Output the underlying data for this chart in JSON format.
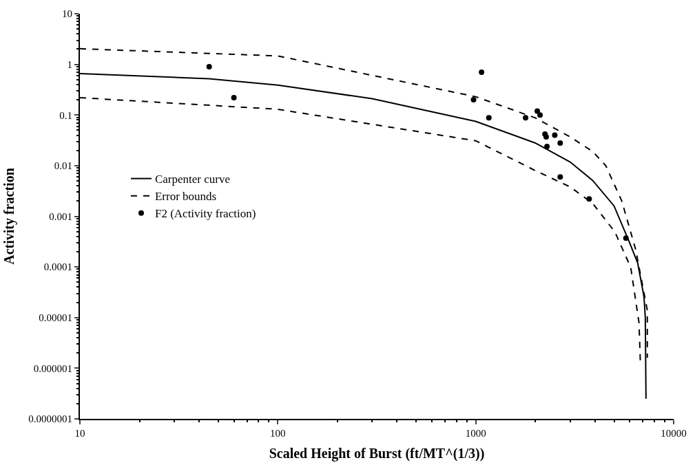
{
  "chart_data": {
    "type": "line",
    "xlabel": "Scaled Height of Burst (ft/MT^(1/3))",
    "ylabel": "Activity fraction",
    "log": "xy",
    "legend": "left",
    "xlim": [
      10,
      10000
    ],
    "xticks": [
      10,
      100,
      1000,
      10000
    ],
    "ylim": [
      1e-07,
      10
    ],
    "yticks": [
      {
        "value": 1e-07,
        "label": "0.0000001"
      },
      {
        "value": 1e-06,
        "label": "0.000001"
      },
      {
        "value": 1e-05,
        "label": "0.00001"
      },
      0.0001,
      0.001,
      0.01,
      0.1,
      1,
      10
    ],
    "series": [
      {
        "name": "Carpenter curve",
        "color": "#000000",
        "line_style": "solid",
        "marker": "none",
        "x": [
          10,
          45,
          100,
          300,
          1000,
          2000,
          3000,
          3900,
          5000,
          5970,
          6580,
          7080,
          7190,
          7250
        ],
        "values": [
          0.66,
          0.52,
          0.39,
          0.21,
          0.075,
          0.028,
          0.0118,
          0.0051,
          0.0016,
          0.00031,
          0.00012,
          2.6e-05,
          1e-05,
          2.5e-07
        ]
      },
      {
        "name": "Error bounds",
        "color": "#000000",
        "line_style": "dashed",
        "marker": "none",
        "x": [
          10,
          100,
          1000,
          2000,
          3000,
          3900,
          4540,
          5470,
          6430,
          7360,
          7360
        ],
        "values": [
          2.04,
          1.47,
          0.23,
          0.088,
          0.037,
          0.019,
          0.01,
          0.002,
          0.00022,
          1.4e-05,
          1.6e-06
        ]
      },
      {
        "color": "#000000",
        "line_style": "dashed",
        "marker": "none",
        "x": [
          10,
          100,
          1000,
          2000,
          3000,
          3900,
          5050,
          6070,
          6680,
          6790
        ],
        "values": [
          0.22,
          0.13,
          0.031,
          0.008,
          0.0038,
          0.0018,
          0.00049,
          9.8e-05,
          8e-06,
          1.3e-06
        ]
      },
      {
        "name": "F2 (Activity fraction)",
        "type": "scatter",
        "color": "#000000",
        "marker": "circle",
        "x": [
          45,
          60,
          1070,
          975,
          1165,
          1786,
          2046,
          2113,
          2238,
          2270,
          2508,
          2672,
          2291,
          2672,
          3742,
          5740
        ],
        "values": [
          0.9,
          0.22,
          0.7,
          0.2,
          0.088,
          0.088,
          0.12,
          0.1,
          0.042,
          0.037,
          0.04,
          0.028,
          0.024,
          0.006,
          0.0022,
          0.00037
        ]
      }
    ]
  }
}
